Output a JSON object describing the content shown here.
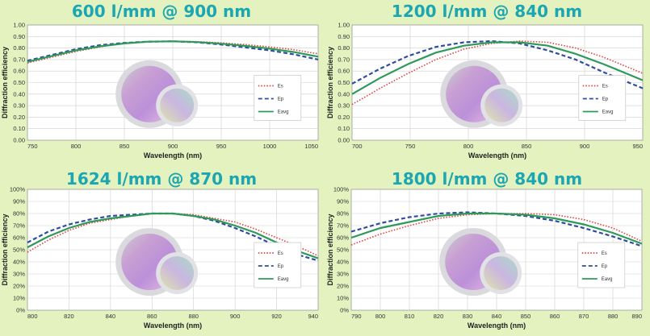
{
  "colors": {
    "Es": "#e0403c",
    "Ep": "#2d4d9e",
    "Eavg": "#2e9a5a",
    "title": "#1ba6b2",
    "background": "#e4f2c0"
  },
  "chart_data": [
    {
      "type": "line",
      "title": "600 l/mm @ 900 nm",
      "xlabel": "Wavelength (nm)",
      "ylabel": "Diffraction efficiency",
      "xlim": [
        750,
        1050
      ],
      "ylim": [
        0,
        1
      ],
      "x_ticks": [
        "750",
        "800",
        "850",
        "900",
        "950",
        "1000",
        "1050"
      ],
      "y_ticks": [
        "0.00",
        "0.10",
        "0.20",
        "0.30",
        "0.40",
        "0.50",
        "0.60",
        "0.70",
        "0.80",
        "0.90",
        "1.00"
      ],
      "grid": true,
      "legend": "right",
      "series": [
        {
          "name": "Es",
          "style": "dotted",
          "x": [
            750,
            775,
            800,
            825,
            850,
            875,
            900,
            925,
            950,
            975,
            1000,
            1025,
            1050
          ],
          "y": [
            0.67,
            0.72,
            0.77,
            0.81,
            0.84,
            0.855,
            0.86,
            0.855,
            0.845,
            0.83,
            0.81,
            0.785,
            0.75
          ]
        },
        {
          "name": "Ep",
          "style": "dashed",
          "x": [
            750,
            775,
            800,
            825,
            850,
            875,
            900,
            925,
            950,
            975,
            1000,
            1025,
            1050
          ],
          "y": [
            0.69,
            0.74,
            0.79,
            0.825,
            0.845,
            0.855,
            0.858,
            0.85,
            0.83,
            0.805,
            0.78,
            0.745,
            0.7
          ]
        },
        {
          "name": "Eavg",
          "style": "solid",
          "x": [
            750,
            775,
            800,
            825,
            850,
            875,
            900,
            925,
            950,
            975,
            1000,
            1025,
            1050
          ],
          "y": [
            0.68,
            0.73,
            0.78,
            0.815,
            0.84,
            0.855,
            0.858,
            0.852,
            0.838,
            0.818,
            0.795,
            0.765,
            0.725
          ]
        }
      ]
    },
    {
      "type": "line",
      "title": "1200 l/mm @ 840 nm",
      "xlabel": "Wavelength (nm)",
      "ylabel": "Diffraction efficiency",
      "xlim": [
        700,
        960
      ],
      "ylim": [
        0,
        1
      ],
      "x_ticks": [
        "700",
        "750",
        "800",
        "850",
        "900",
        "950"
      ],
      "y_ticks": [
        "0.00",
        "0.10",
        "0.20",
        "0.30",
        "0.40",
        "0.50",
        "0.60",
        "0.70",
        "0.80",
        "0.90",
        "1.00"
      ],
      "grid": true,
      "legend": "right",
      "series": [
        {
          "name": "Es",
          "style": "dotted",
          "x": [
            700,
            725,
            750,
            775,
            800,
            825,
            850,
            875,
            900,
            925,
            950,
            960
          ],
          "y": [
            0.31,
            0.45,
            0.58,
            0.7,
            0.79,
            0.84,
            0.86,
            0.85,
            0.8,
            0.72,
            0.62,
            0.58
          ]
        },
        {
          "name": "Ep",
          "style": "dashed",
          "x": [
            700,
            725,
            750,
            775,
            800,
            825,
            850,
            875,
            900,
            925,
            950,
            960
          ],
          "y": [
            0.49,
            0.62,
            0.73,
            0.81,
            0.85,
            0.86,
            0.84,
            0.78,
            0.7,
            0.59,
            0.49,
            0.45
          ]
        },
        {
          "name": "Eavg",
          "style": "solid",
          "x": [
            700,
            725,
            750,
            775,
            800,
            825,
            850,
            875,
            900,
            925,
            950,
            960
          ],
          "y": [
            0.4,
            0.54,
            0.66,
            0.76,
            0.82,
            0.85,
            0.85,
            0.82,
            0.75,
            0.66,
            0.56,
            0.52
          ]
        }
      ]
    },
    {
      "type": "line",
      "title": "1624 l/mm @ 870 nm",
      "xlabel": "Wavelength (nm)",
      "ylabel": "Diffraction efficiency",
      "xlim": [
        800,
        940
      ],
      "ylim": [
        0,
        100
      ],
      "x_ticks": [
        "800",
        "820",
        "840",
        "860",
        "880",
        "900",
        "920",
        "940"
      ],
      "y_ticks": [
        "0%",
        "10%",
        "20%",
        "30%",
        "40%",
        "50%",
        "60%",
        "70%",
        "80%",
        "90%",
        "100%"
      ],
      "grid": true,
      "legend": "right",
      "series": [
        {
          "name": "Es",
          "style": "dotted",
          "x": [
            800,
            810,
            820,
            830,
            840,
            850,
            860,
            870,
            880,
            890,
            900,
            910,
            920,
            930,
            940
          ],
          "y": [
            48,
            58,
            66,
            72,
            75,
            78,
            80,
            80,
            79,
            76,
            73,
            67,
            60,
            53,
            45
          ]
        },
        {
          "name": "Ep",
          "style": "dashed",
          "x": [
            800,
            810,
            820,
            830,
            840,
            850,
            860,
            870,
            880,
            890,
            900,
            910,
            920,
            930,
            940
          ],
          "y": [
            56,
            65,
            71,
            75,
            78,
            79,
            80,
            80,
            78,
            74,
            68,
            61,
            53,
            46,
            41
          ]
        },
        {
          "name": "Eavg",
          "style": "solid",
          "x": [
            800,
            810,
            820,
            830,
            840,
            850,
            860,
            870,
            880,
            890,
            900,
            910,
            920,
            930,
            940
          ],
          "y": [
            52,
            61,
            68,
            73,
            76,
            78,
            80,
            80,
            78,
            75,
            70,
            64,
            56,
            49,
            43
          ]
        }
      ]
    },
    {
      "type": "line",
      "title": "1800 l/mm @ 840 nm",
      "xlabel": "Wavelength (nm)",
      "ylabel": "Diffraction efficiency",
      "xlim": [
        790,
        890
      ],
      "ylim": [
        0,
        100
      ],
      "x_ticks": [
        "790",
        "800",
        "810",
        "820",
        "830",
        "840",
        "850",
        "860",
        "870",
        "880",
        "890"
      ],
      "y_ticks": [
        "0%",
        "10%",
        "20%",
        "30%",
        "40%",
        "50%",
        "60%",
        "70%",
        "80%",
        "90%",
        "100%"
      ],
      "grid": true,
      "legend": "right",
      "series": [
        {
          "name": "Es",
          "style": "dotted",
          "x": [
            790,
            800,
            810,
            820,
            830,
            840,
            850,
            860,
            870,
            880,
            890
          ],
          "y": [
            54,
            63,
            70,
            76,
            79,
            80,
            80,
            79,
            75,
            68,
            57
          ]
        },
        {
          "name": "Ep",
          "style": "dashed",
          "x": [
            790,
            800,
            810,
            820,
            830,
            840,
            850,
            860,
            870,
            880,
            890
          ],
          "y": [
            65,
            72,
            77,
            80,
            81,
            80,
            78,
            74,
            68,
            61,
            53
          ]
        },
        {
          "name": "Eavg",
          "style": "solid",
          "x": [
            790,
            800,
            810,
            820,
            830,
            840,
            850,
            860,
            870,
            880,
            890
          ],
          "y": [
            60,
            68,
            73,
            78,
            80,
            80,
            79,
            76,
            71,
            64,
            55
          ]
        }
      ]
    }
  ]
}
